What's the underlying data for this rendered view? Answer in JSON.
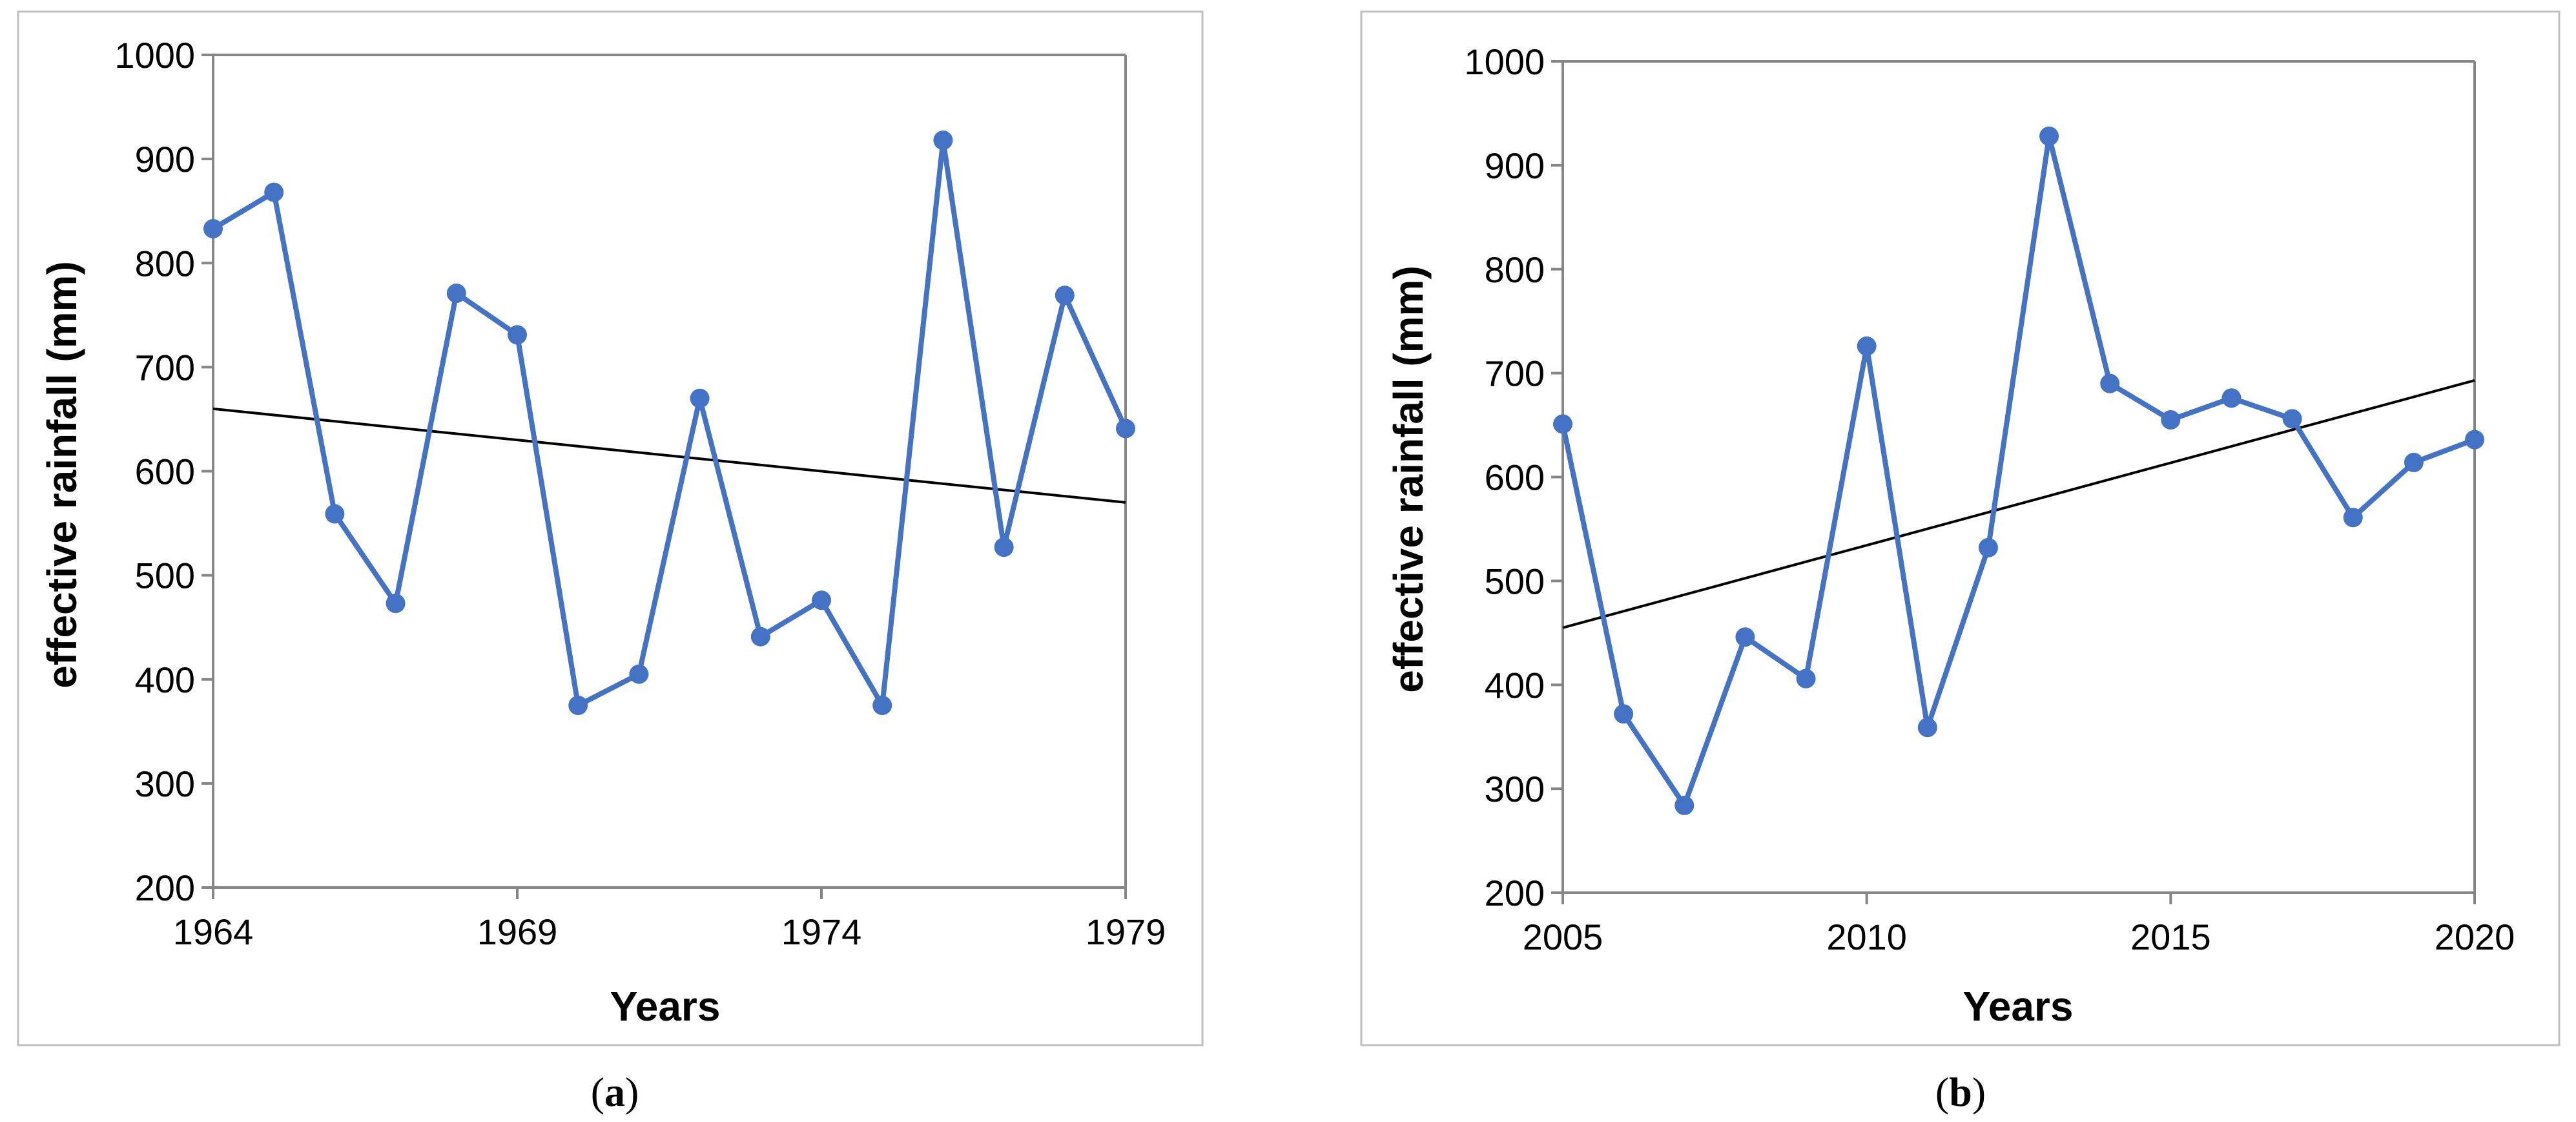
{
  "chart_data": [
    {
      "type": "line",
      "caption": {
        "open": "(",
        "letter": "a",
        "close": ")"
      },
      "xlabel": "Years",
      "ylabel": "effective rainfall (mm)",
      "x": [
        1964,
        1965,
        1966,
        1967,
        1968,
        1969,
        1970,
        1971,
        1972,
        1973,
        1974,
        1975,
        1976,
        1977,
        1978,
        1979
      ],
      "series": [
        {
          "values": [
            833,
            868,
            559,
            473,
            771,
            731,
            375,
            405,
            670,
            441,
            476,
            375,
            918,
            527,
            769,
            641
          ],
          "color": "#4472c4"
        }
      ],
      "trendline": {
        "x": [
          1964,
          1979
        ],
        "y": [
          660,
          570
        ],
        "color": "#000000"
      },
      "xlim": [
        1964,
        1979
      ],
      "ylim": [
        200,
        1000
      ],
      "xticks": [
        1964,
        1969,
        1974,
        1979
      ],
      "yticks": [
        200,
        300,
        400,
        500,
        600,
        700,
        800,
        900,
        1000
      ],
      "grid": false
    },
    {
      "type": "line",
      "caption": {
        "open": "(",
        "letter": "b",
        "close": ")"
      },
      "xlabel": "Years",
      "ylabel": "effective rainfall (mm)",
      "x": [
        2005,
        2006,
        2007,
        2008,
        2009,
        2010,
        2011,
        2012,
        2013,
        2014,
        2015,
        2016,
        2017,
        2018,
        2019,
        2020
      ],
      "series": [
        {
          "values": [
            651,
            372,
            284,
            446,
            406,
            726,
            359,
            532,
            928,
            690,
            655,
            676,
            656,
            561,
            614,
            636
          ],
          "color": "#4472c4"
        }
      ],
      "trendline": {
        "x": [
          2005,
          2020
        ],
        "y": [
          455,
          693
        ],
        "color": "#000000"
      },
      "xlim": [
        2005,
        2020
      ],
      "ylim": [
        200,
        1000
      ],
      "xticks": [
        2005,
        2010,
        2015,
        2020
      ],
      "yticks": [
        200,
        300,
        400,
        500,
        600,
        700,
        800,
        900,
        1000
      ],
      "grid": false
    }
  ]
}
